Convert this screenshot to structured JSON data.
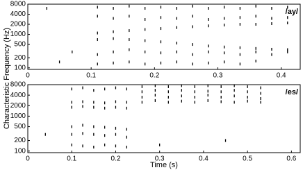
{
  "chart_data": [
    {
      "type": "scatter",
      "annotation": "/ay/",
      "ylabel": "Characteristic Frequency (Hz)",
      "xlim": [
        0,
        0.43
      ],
      "xticks": [
        0,
        0.1,
        0.2,
        0.3,
        0.4
      ],
      "ylim": [
        90,
        8000
      ],
      "log_y": true,
      "yticks": [
        100,
        200,
        500,
        1000,
        2000,
        4000,
        8000
      ],
      "color": "#000000",
      "x": [
        0.03,
        0.07,
        0.05,
        0.11,
        0.11,
        0.11,
        0.11,
        0.11,
        0.11,
        0.135,
        0.135,
        0.135,
        0.135,
        0.135,
        0.135,
        0.16,
        0.16,
        0.16,
        0.16,
        0.16,
        0.16,
        0.185,
        0.185,
        0.185,
        0.185,
        0.185,
        0.185,
        0.21,
        0.21,
        0.21,
        0.21,
        0.21,
        0.21,
        0.235,
        0.235,
        0.235,
        0.235,
        0.235,
        0.235,
        0.26,
        0.26,
        0.26,
        0.26,
        0.26,
        0.26,
        0.285,
        0.285,
        0.285,
        0.285,
        0.285,
        0.285,
        0.31,
        0.31,
        0.31,
        0.31,
        0.31,
        0.31,
        0.335,
        0.335,
        0.335,
        0.335,
        0.335,
        0.335,
        0.36,
        0.36,
        0.36,
        0.36,
        0.36,
        0.36,
        0.385,
        0.385,
        0.385,
        0.385,
        0.385,
        0.41,
        0.41,
        0.41,
        0.41,
        0.41
      ],
      "y": [
        6000,
        300,
        150,
        6500,
        3500,
        1100,
        700,
        250,
        130,
        6000,
        3000,
        1200,
        750,
        300,
        140,
        7000,
        3500,
        1300,
        700,
        350,
        150,
        6000,
        2800,
        1400,
        650,
        300,
        130,
        6500,
        3200,
        1500,
        600,
        280,
        140,
        6000,
        3000,
        1600,
        550,
        300,
        150,
        7000,
        3500,
        1700,
        500,
        250,
        130,
        6000,
        2800,
        1800,
        450,
        300,
        140,
        6500,
        3000,
        1900,
        420,
        280,
        150,
        6000,
        3200,
        2000,
        400,
        250,
        130,
        7000,
        3500,
        2000,
        380,
        300,
        160,
        6000,
        3000,
        2100,
        360,
        250,
        6500,
        3200,
        2200,
        350,
        300
      ]
    },
    {
      "type": "scatter",
      "annotation": "/es/",
      "xlabel": "Time (s)",
      "xlim": [
        0,
        0.62
      ],
      "xticks": [
        0,
        0.1,
        0.2,
        0.3,
        0.4,
        0.5,
        0.6
      ],
      "ylim": [
        90,
        8000
      ],
      "log_y": true,
      "yticks": [
        100,
        200,
        500,
        1000,
        2000,
        4000,
        8000
      ],
      "color": "#000000",
      "x": [
        0.04,
        0.3,
        0.45,
        0.1,
        0.1,
        0.1,
        0.1,
        0.1,
        0.1,
        0.125,
        0.125,
        0.125,
        0.125,
        0.125,
        0.125,
        0.15,
        0.15,
        0.15,
        0.15,
        0.15,
        0.15,
        0.175,
        0.175,
        0.175,
        0.175,
        0.175,
        0.175,
        0.2,
        0.2,
        0.2,
        0.2,
        0.2,
        0.2,
        0.225,
        0.225,
        0.225,
        0.225,
        0.225,
        0.225,
        0.26,
        0.26,
        0.26,
        0.26,
        0.29,
        0.29,
        0.29,
        0.29,
        0.32,
        0.32,
        0.32,
        0.32,
        0.35,
        0.35,
        0.35,
        0.35,
        0.38,
        0.38,
        0.38,
        0.38,
        0.41,
        0.41,
        0.41,
        0.41,
        0.44,
        0.44,
        0.44,
        0.44,
        0.47,
        0.47,
        0.47,
        0.47,
        0.5,
        0.5,
        0.5,
        0.5,
        0.53,
        0.53,
        0.53,
        0.53
      ],
      "y": [
        300,
        150,
        200,
        6000,
        2500,
        1800,
        500,
        300,
        150,
        6500,
        2600,
        1900,
        550,
        320,
        140,
        5500,
        2500,
        1800,
        500,
        300,
        130,
        6000,
        2400,
        1700,
        480,
        280,
        150,
        6500,
        2600,
        1800,
        450,
        300,
        140,
        6000,
        2500,
        1700,
        420,
        250,
        130,
        7000,
        5000,
        3500,
        2500,
        7500,
        5500,
        4000,
        2800,
        7000,
        5000,
        3500,
        2500,
        7500,
        5500,
        3800,
        2700,
        7000,
        5000,
        3500,
        2500,
        7500,
        5200,
        4000,
        2800,
        7000,
        5000,
        3500,
        2600,
        7500,
        5500,
        3800,
        2500,
        7000,
        5000,
        3500,
        2700,
        6500,
        4500,
        3200,
        2500
      ]
    }
  ]
}
